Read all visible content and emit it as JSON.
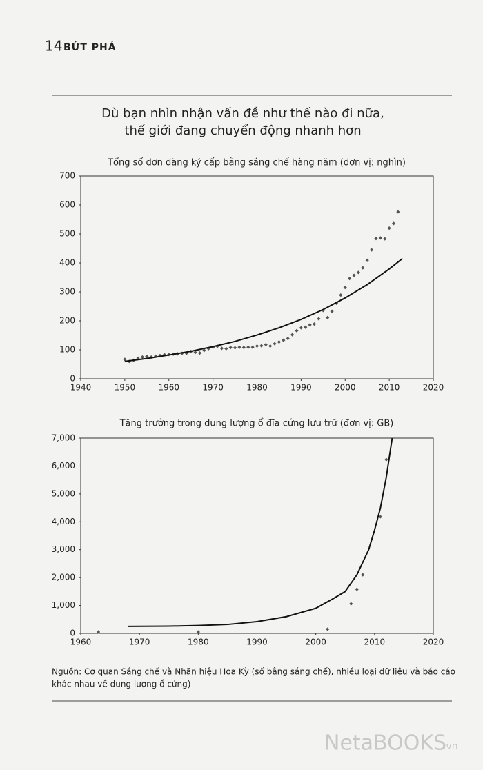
{
  "header": {
    "page_number": "14",
    "running_title": "BỨT PHÁ"
  },
  "title_lines": [
    "Dù bạn nhìn nhận vấn đề như thế nào đi nữa,",
    "thế giới đang chuyển động nhanh hơn"
  ],
  "chart_data": [
    {
      "type": "scatter",
      "subtitle": "Tổng số đơn đăng ký cấp bằng sáng chế hàng năm (đơn vị: nghìn)",
      "xlim": [
        1940,
        2020
      ],
      "xticks": [
        1940,
        1950,
        1960,
        1970,
        1980,
        1990,
        2000,
        2010,
        2020
      ],
      "ylim": [
        0,
        700
      ],
      "yticks": [
        0,
        100,
        200,
        300,
        400,
        500,
        600,
        700
      ],
      "series": [
        {
          "color": "#555555",
          "marker": "diamond",
          "x": [
            1950,
            1951,
            1952,
            1953,
            1954,
            1955,
            1956,
            1957,
            1958,
            1959,
            1960,
            1961,
            1962,
            1963,
            1964,
            1965,
            1966,
            1967,
            1968,
            1969,
            1970,
            1971,
            1972,
            1973,
            1974,
            1975,
            1976,
            1977,
            1978,
            1979,
            1980,
            1981,
            1982,
            1983,
            1984,
            1985,
            1986,
            1987,
            1988,
            1989,
            1990,
            1991,
            1992,
            1993,
            1994,
            1995,
            1996,
            1997,
            1998,
            1999,
            2000,
            2001,
            2002,
            2003,
            2004,
            2005,
            2006,
            2007,
            2008,
            2009,
            2010,
            2011,
            2012
          ],
          "values": [
            67,
            60,
            64,
            71,
            75,
            77,
            75,
            78,
            80,
            83,
            84,
            85,
            86,
            88,
            88,
            94,
            91,
            89,
            98,
            104,
            109,
            112,
            105,
            104,
            108,
            107,
            109,
            108,
            109,
            109,
            113,
            114,
            118,
            113,
            121,
            127,
            133,
            139,
            152,
            166,
            176,
            178,
            186,
            189,
            207,
            236,
            211,
            233,
            261,
            289,
            315,
            346,
            357,
            367,
            383,
            409,
            445,
            484,
            486,
            483,
            520,
            536,
            576
          ]
        },
        {
          "color": "#111111",
          "marker": "line",
          "x": [
            1950,
            1955,
            1960,
            1965,
            1970,
            1975,
            1980,
            1985,
            1990,
            1995,
            2000,
            2005,
            2010,
            2013
          ],
          "values": [
            60,
            70,
            82,
            95,
            111,
            129,
            151,
            176,
            205,
            239,
            279,
            325,
            379,
            415
          ]
        }
      ]
    },
    {
      "type": "scatter",
      "subtitle": "Tăng trưởng trong dung lượng ổ đĩa cứng lưu trữ (đơn vị: GB)",
      "xlim": [
        1960,
        2020
      ],
      "xticks": [
        1960,
        1970,
        1980,
        1990,
        2000,
        2010,
        2020
      ],
      "ylim": [
        0,
        7000
      ],
      "yticks": [
        0,
        {
          "value": 1000,
          "label": "1,000"
        },
        {
          "value": 2000,
          "label": "2,000"
        },
        {
          "value": 3000,
          "label": "3,000"
        },
        {
          "value": 4000,
          "label": "4,000"
        },
        {
          "value": 5000,
          "label": "5,000"
        },
        {
          "value": 6000,
          "label": "6,000"
        },
        {
          "value": 7000,
          "label": "7,000"
        }
      ],
      "series": [
        {
          "color": "#555555",
          "marker": "diamond",
          "x": [
            1963,
            1980,
            2002,
            2006,
            2007,
            2008,
            2011,
            2012
          ],
          "values": [
            50,
            50,
            150,
            1060,
            1580,
            2100,
            4180,
            6230
          ]
        },
        {
          "color": "#111111",
          "marker": "line",
          "x": [
            1968,
            1975,
            1980,
            1985,
            1990,
            1995,
            2000,
            2003,
            2005,
            2007,
            2009,
            2010,
            2011,
            2012,
            2013
          ],
          "values": [
            250,
            260,
            280,
            320,
            420,
            600,
            900,
            1250,
            1500,
            2100,
            3000,
            3700,
            4500,
            5600,
            7000
          ]
        }
      ]
    }
  ],
  "source_lines": [
    "Nguồn: Cơ quan Sáng chế và Nhãn hiệu Hoa Kỳ (số bằng sáng chế), nhiều loại dữ liệu và báo cáo",
    "khác nhau về dung lượng ổ cứng)"
  ],
  "watermark": {
    "brand": "NetaBOOKS",
    "suffix": ".vn"
  }
}
